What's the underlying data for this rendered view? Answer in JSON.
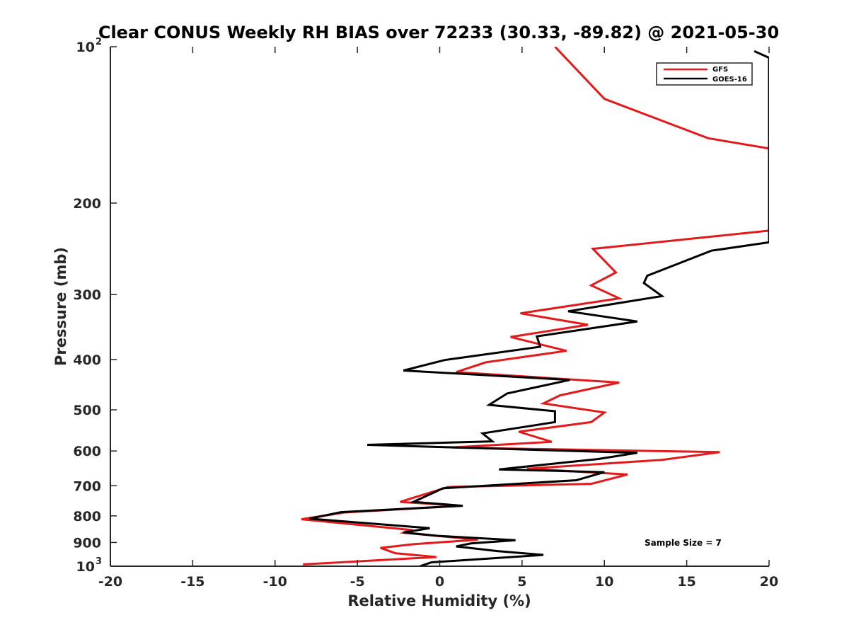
{
  "chart_data": {
    "type": "line",
    "title": "Clear CONUS Weekly RH BIAS over 72233 (30.33, -89.82) @ 2021-05-30",
    "xlabel": "Relative Humidity (%)",
    "ylabel": "Pressure (mb)",
    "xlim": [
      -20,
      20
    ],
    "ylim": [
      100,
      1000
    ],
    "y_scale": "log",
    "y_reversed": true,
    "grid": false,
    "legend_position": "top-right",
    "x_ticks": [
      "-20",
      "-15",
      "-10",
      "-5",
      "0",
      "5",
      "10",
      "15",
      "20"
    ],
    "y_ticks": [
      {
        "base": "10",
        "exp": "2",
        "p": 100
      },
      {
        "base": "200",
        "exp": "",
        "p": 200
      },
      {
        "base": "300",
        "exp": "",
        "p": 300
      },
      {
        "base": "400",
        "exp": "",
        "p": 400
      },
      {
        "base": "500",
        "exp": "",
        "p": 500
      },
      {
        "base": "600",
        "exp": "",
        "p": 600
      },
      {
        "base": "700",
        "exp": "",
        "p": 700
      },
      {
        "base": "800",
        "exp": "",
        "p": 800
      },
      {
        "base": "900",
        "exp": "",
        "p": 900
      },
      {
        "base": "10",
        "exp": "3",
        "p": 1000
      }
    ],
    "series": [
      {
        "name": "GFS",
        "color": "#e31a1c",
        "points": [
          [
            7.0,
            100
          ],
          [
            10.0,
            126
          ],
          [
            16.3,
            150
          ],
          [
            20.0,
            157
          ],
          [
            20.0,
            226
          ],
          [
            9.3,
            245
          ],
          [
            10.7,
            272
          ],
          [
            9.2,
            288
          ],
          [
            10.9,
            305
          ],
          [
            4.9,
            326
          ],
          [
            9.0,
            343
          ],
          [
            4.3,
            362
          ],
          [
            7.7,
            385
          ],
          [
            2.8,
            405
          ],
          [
            1.0,
            423
          ],
          [
            10.9,
            443
          ],
          [
            7.3,
            469
          ],
          [
            6.3,
            486
          ],
          [
            10.0,
            506
          ],
          [
            9.2,
            528
          ],
          [
            4.8,
            551
          ],
          [
            6.8,
            576
          ],
          [
            0.7,
            591
          ],
          [
            17.0,
            603
          ],
          [
            13.5,
            624
          ],
          [
            5.3,
            649
          ],
          [
            11.4,
            666
          ],
          [
            9.2,
            694
          ],
          [
            0.5,
            704
          ],
          [
            -2.4,
            752
          ],
          [
            1.3,
            765
          ],
          [
            -5.8,
            788
          ],
          [
            -8.4,
            812
          ],
          [
            -1.8,
            851
          ],
          [
            -2.2,
            862
          ],
          [
            2.3,
            889
          ],
          [
            -1.6,
            907
          ],
          [
            -3.6,
            922
          ],
          [
            -2.7,
            944
          ],
          [
            -0.2,
            960
          ],
          [
            -8.3,
            992
          ]
        ]
      },
      {
        "name": "GOES-16",
        "color": "#000000",
        "points": [
          [
            19.1,
            102
          ],
          [
            20.0,
            105
          ],
          [
            20.0,
            238
          ],
          [
            16.5,
            247
          ],
          [
            12.6,
            276
          ],
          [
            12.4,
            285
          ],
          [
            13.5,
            302
          ],
          [
            7.8,
            323
          ],
          [
            12.0,
            338
          ],
          [
            5.9,
            361
          ],
          [
            6.1,
            378
          ],
          [
            0.3,
            401
          ],
          [
            -2.2,
            420
          ],
          [
            7.9,
            438
          ],
          [
            4.1,
            465
          ],
          [
            3.0,
            489
          ],
          [
            7.0,
            503
          ],
          [
            7.0,
            528
          ],
          [
            2.6,
            555
          ],
          [
            3.2,
            575
          ],
          [
            -4.4,
            584
          ],
          [
            12.0,
            605
          ],
          [
            9.6,
            622
          ],
          [
            3.6,
            651
          ],
          [
            10.0,
            659
          ],
          [
            8.3,
            683
          ],
          [
            0.2,
            708
          ],
          [
            -1.6,
            752
          ],
          [
            1.4,
            765
          ],
          [
            -6.0,
            787
          ],
          [
            -7.9,
            810
          ],
          [
            -0.6,
            845
          ],
          [
            -2.2,
            861
          ],
          [
            -0.1,
            874
          ],
          [
            4.6,
            891
          ],
          [
            1.9,
            904
          ],
          [
            1.0,
            916
          ],
          [
            3.5,
            935
          ],
          [
            6.3,
            951
          ],
          [
            -0.5,
            983
          ],
          [
            -1.2,
            1000
          ]
        ]
      }
    ],
    "legend": [
      {
        "label": "GFS",
        "color": "#e31a1c"
      },
      {
        "label": "GOES-16",
        "color": "#000000"
      }
    ],
    "annotations": {
      "sample_size": "Sample Size = 7"
    }
  }
}
